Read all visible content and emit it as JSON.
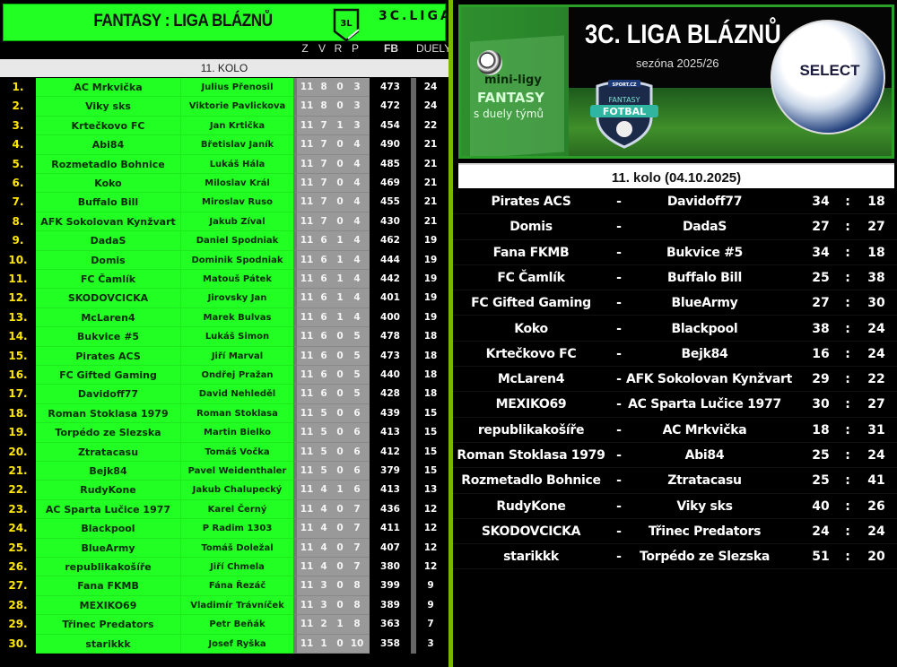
{
  "header": {
    "title": "FANTASY : LIGA BLÁZNŮ",
    "logo_text": "3L",
    "league": "3C.LIGA"
  },
  "columns": {
    "z": "Z",
    "v": "V",
    "r": "R",
    "p": "P",
    "fb": "FB",
    "duely": "DUELY"
  },
  "round_label": "11. KOLO",
  "colors": {
    "green": "#22ff22",
    "rank_yellow": "#ffe600",
    "stats_gray": "#999999",
    "divider": "#7ab800"
  },
  "standings": [
    {
      "rank": "1.",
      "team": "AC Mrkvička",
      "manager": "Julius Přenosil",
      "z": "11",
      "v": "8",
      "r": "0",
      "p": "3",
      "fb": "473",
      "duely": "24"
    },
    {
      "rank": "2.",
      "team": "Viky sks",
      "manager": "Viktorie Pavlickova",
      "z": "11",
      "v": "8",
      "r": "0",
      "p": "3",
      "fb": "472",
      "duely": "24"
    },
    {
      "rank": "3.",
      "team": "Krtečkovo FC",
      "manager": "Jan Krtička",
      "z": "11",
      "v": "7",
      "r": "1",
      "p": "3",
      "fb": "454",
      "duely": "22"
    },
    {
      "rank": "4.",
      "team": "Abi84",
      "manager": "Břetislav Janík",
      "z": "11",
      "v": "7",
      "r": "0",
      "p": "4",
      "fb": "490",
      "duely": "21"
    },
    {
      "rank": "5.",
      "team": "Rozmetadlo Bohnice",
      "manager": "Lukáš Hála",
      "z": "11",
      "v": "7",
      "r": "0",
      "p": "4",
      "fb": "485",
      "duely": "21"
    },
    {
      "rank": "6.",
      "team": "Koko",
      "manager": "Miloslav Král",
      "z": "11",
      "v": "7",
      "r": "0",
      "p": "4",
      "fb": "469",
      "duely": "21"
    },
    {
      "rank": "7.",
      "team": "Buffalo Bill",
      "manager": "Miroslav Ruso",
      "z": "11",
      "v": "7",
      "r": "0",
      "p": "4",
      "fb": "455",
      "duely": "21"
    },
    {
      "rank": "8.",
      "team": "AFK Sokolovan Kynžvart",
      "manager": "Jakub Zíval",
      "z": "11",
      "v": "7",
      "r": "0",
      "p": "4",
      "fb": "430",
      "duely": "21"
    },
    {
      "rank": "9.",
      "team": "DadaS",
      "manager": "Daniel Spodniak",
      "z": "11",
      "v": "6",
      "r": "1",
      "p": "4",
      "fb": "462",
      "duely": "19"
    },
    {
      "rank": "10.",
      "team": "Domis",
      "manager": "Dominik Spodniak",
      "z": "11",
      "v": "6",
      "r": "1",
      "p": "4",
      "fb": "444",
      "duely": "19"
    },
    {
      "rank": "11.",
      "team": "FC Čamlík",
      "manager": "Matouš Pátek",
      "z": "11",
      "v": "6",
      "r": "1",
      "p": "4",
      "fb": "442",
      "duely": "19"
    },
    {
      "rank": "12.",
      "team": "SKODOVCICKA",
      "manager": "Jirovsky Jan",
      "z": "11",
      "v": "6",
      "r": "1",
      "p": "4",
      "fb": "401",
      "duely": "19"
    },
    {
      "rank": "13.",
      "team": "McLaren4",
      "manager": "Marek Bulvas",
      "z": "11",
      "v": "6",
      "r": "1",
      "p": "4",
      "fb": "400",
      "duely": "19"
    },
    {
      "rank": "14.",
      "team": "Bukvice #5",
      "manager": "Lukáš Simon",
      "z": "11",
      "v": "6",
      "r": "0",
      "p": "5",
      "fb": "478",
      "duely": "18"
    },
    {
      "rank": "15.",
      "team": "Pirates ACS",
      "manager": "Jiří Marval",
      "z": "11",
      "v": "6",
      "r": "0",
      "p": "5",
      "fb": "473",
      "duely": "18"
    },
    {
      "rank": "16.",
      "team": "FC Gifted Gaming",
      "manager": "Ondřej Pražan",
      "z": "11",
      "v": "6",
      "r": "0",
      "p": "5",
      "fb": "440",
      "duely": "18"
    },
    {
      "rank": "17.",
      "team": "Davidoff77",
      "manager": "David Nehleděl",
      "z": "11",
      "v": "6",
      "r": "0",
      "p": "5",
      "fb": "428",
      "duely": "18"
    },
    {
      "rank": "18.",
      "team": "Roman Stoklasa 1979",
      "manager": "Roman Stoklasa",
      "z": "11",
      "v": "5",
      "r": "0",
      "p": "6",
      "fb": "439",
      "duely": "15"
    },
    {
      "rank": "19.",
      "team": "Torpédo ze Slezska",
      "manager": "Martin Bielko",
      "z": "11",
      "v": "5",
      "r": "0",
      "p": "6",
      "fb": "413",
      "duely": "15"
    },
    {
      "rank": "20.",
      "team": "Ztratacasu",
      "manager": "Tomáš Vočka",
      "z": "11",
      "v": "5",
      "r": "0",
      "p": "6",
      "fb": "412",
      "duely": "15"
    },
    {
      "rank": "21.",
      "team": "Bejk84",
      "manager": "Pavel Weidenthaler",
      "z": "11",
      "v": "5",
      "r": "0",
      "p": "6",
      "fb": "379",
      "duely": "15"
    },
    {
      "rank": "22.",
      "team": "RudyKone",
      "manager": "Jakub Chalupecký",
      "z": "11",
      "v": "4",
      "r": "1",
      "p": "6",
      "fb": "413",
      "duely": "13"
    },
    {
      "rank": "23.",
      "team": "AC Sparta Lučice 1977",
      "manager": "Karel Černý",
      "z": "11",
      "v": "4",
      "r": "0",
      "p": "7",
      "fb": "436",
      "duely": "12"
    },
    {
      "rank": "24.",
      "team": "Blackpool",
      "manager": "P Radim 1303",
      "z": "11",
      "v": "4",
      "r": "0",
      "p": "7",
      "fb": "411",
      "duely": "12"
    },
    {
      "rank": "25.",
      "team": "BlueArmy",
      "manager": "Tomáš Doležal",
      "z": "11",
      "v": "4",
      "r": "0",
      "p": "7",
      "fb": "407",
      "duely": "12"
    },
    {
      "rank": "26.",
      "team": "republikakošíře",
      "manager": "Jiří Chmela",
      "z": "11",
      "v": "4",
      "r": "0",
      "p": "7",
      "fb": "380",
      "duely": "12"
    },
    {
      "rank": "27.",
      "team": "Fana FKMB",
      "manager": "Fána Řezáč",
      "z": "11",
      "v": "3",
      "r": "0",
      "p": "8",
      "fb": "399",
      "duely": "9"
    },
    {
      "rank": "28.",
      "team": "MEXIKO69",
      "manager": "Vladimír Trávníček",
      "z": "11",
      "v": "3",
      "r": "0",
      "p": "8",
      "fb": "389",
      "duely": "9"
    },
    {
      "rank": "29.",
      "team": "Třinec Predators",
      "manager": "Petr Beňák",
      "z": "11",
      "v": "2",
      "r": "1",
      "p": "8",
      "fb": "363",
      "duely": "7"
    },
    {
      "rank": "30.",
      "team": "starikkk",
      "manager": "Josef Ryška",
      "z": "11",
      "v": "1",
      "r": "0",
      "p": "10",
      "fb": "358",
      "duely": "3"
    }
  ],
  "banner": {
    "title": "3C. LIGA BLÁZNŮ",
    "season": "sezóna 2025/26",
    "mini_line1": "mini-ligy",
    "mini_line2": "FANTASY",
    "mini_line3": "s duely týmů",
    "shield_top": "SPORT.CZ",
    "shield_line1": "FANTASY",
    "shield_line2": "FOTBAL",
    "ball_brand": "SELECT"
  },
  "matches_title": "11. kolo (04.10.2025)",
  "matches": [
    {
      "home": "Pirates ACS",
      "away": "Davidoff77",
      "hs": "34",
      "as": "18"
    },
    {
      "home": "Domis",
      "away": "DadaS",
      "hs": "27",
      "as": "27"
    },
    {
      "home": "Fana FKMB",
      "away": "Bukvice #5",
      "hs": "34",
      "as": "18"
    },
    {
      "home": "FC Čamlík",
      "away": "Buffalo Bill",
      "hs": "25",
      "as": "38"
    },
    {
      "home": "FC Gifted Gaming",
      "away": "BlueArmy",
      "hs": "27",
      "as": "30"
    },
    {
      "home": "Koko",
      "away": "Blackpool",
      "hs": "38",
      "as": "24"
    },
    {
      "home": "Krtečkovo FC",
      "away": "Bejk84",
      "hs": "16",
      "as": "24"
    },
    {
      "home": "McLaren4",
      "away": "AFK Sokolovan Kynžvart",
      "hs": "29",
      "as": "22"
    },
    {
      "home": "MEXIKO69",
      "away": "AC Sparta Lučice 1977",
      "hs": "30",
      "as": "27"
    },
    {
      "home": "republikakošíře",
      "away": "AC Mrkvička",
      "hs": "18",
      "as": "31"
    },
    {
      "home": "Roman Stoklasa 1979",
      "away": "Abi84",
      "hs": "25",
      "as": "24"
    },
    {
      "home": "Rozmetadlo Bohnice",
      "away": "Ztratacasu",
      "hs": "25",
      "as": "41"
    },
    {
      "home": "RudyKone",
      "away": "Viky sks",
      "hs": "40",
      "as": "26"
    },
    {
      "home": "SKODOVCICKA",
      "away": "Třinec Predators",
      "hs": "24",
      "as": "24"
    },
    {
      "home": "starikkk",
      "away": "Torpédo ze Slezska",
      "hs": "51",
      "as": "20"
    }
  ],
  "match_separator": "-",
  "score_separator": ":"
}
